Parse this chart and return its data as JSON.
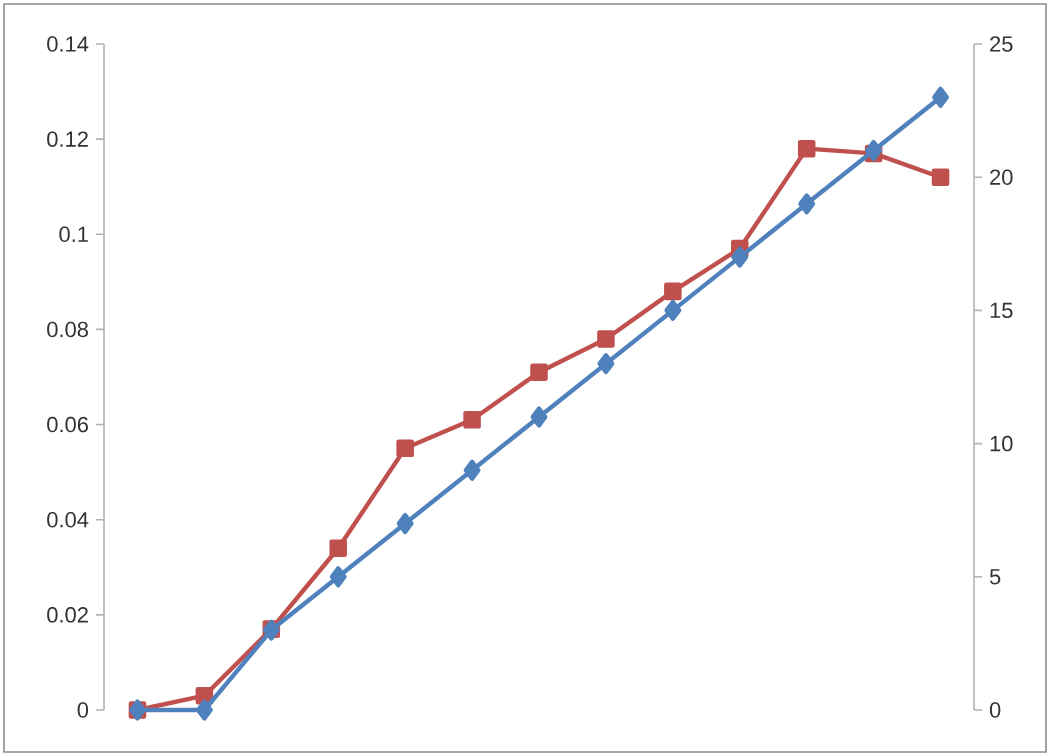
{
  "chart_data": {
    "type": "line",
    "categories": [
      null,
      null,
      null,
      null,
      null,
      null,
      null,
      null,
      null,
      null,
      null,
      null,
      null
    ],
    "series": [
      {
        "color": "#c0504d",
        "marker": "square",
        "axis": "y",
        "values": [
          0,
          0.003,
          0.017,
          0.034,
          0.055,
          0.061,
          0.071,
          0.078,
          0.088,
          0.097,
          0.118,
          0.117,
          0.112
        ]
      },
      {
        "color": "#4f81bd",
        "marker": "diamond",
        "axis": "y2",
        "values": [
          0,
          0,
          3,
          5,
          7,
          9,
          11,
          13,
          15,
          17,
          19,
          21,
          23
        ]
      }
    ],
    "ylim": [
      0,
      0.14
    ],
    "yticks": [
      0,
      0.02,
      0.04,
      0.06,
      0.08,
      0.1,
      0.12,
      0.14
    ],
    "y2lim": [
      0,
      25
    ],
    "y2ticks": [
      0,
      5,
      10,
      15,
      20,
      25
    ],
    "grid": false
  }
}
